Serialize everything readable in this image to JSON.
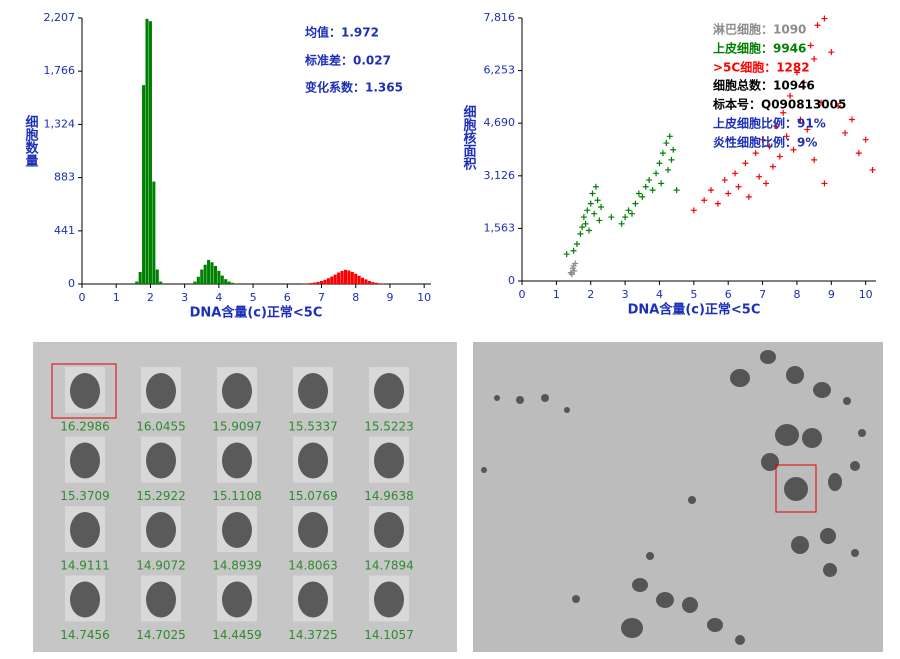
{
  "chart_data": [
    {
      "type": "bar",
      "ylabel": "细胞数量",
      "xlabel": "DNA含量(c)正常<5C",
      "annotations": [
        {
          "text": "均值：1.972",
          "color": "#1c2fb8"
        },
        {
          "text": "标准差：0.027",
          "color": "#1c2fb8"
        },
        {
          "text": "变化系数：1.365",
          "color": "#1c2fb8"
        }
      ],
      "series": [
        {
          "color": "#008000",
          "x": [
            1.6,
            1.7,
            1.8,
            1.9,
            2.0,
            2.1,
            2.2,
            2.3,
            3.3,
            3.4,
            3.5,
            3.6,
            3.7,
            3.8,
            3.9,
            4.0,
            4.1,
            4.2,
            4.3,
            4.4,
            4.5
          ],
          "values": [
            20,
            100,
            1650,
            2200,
            2180,
            850,
            120,
            20,
            20,
            60,
            120,
            160,
            200,
            180,
            150,
            110,
            70,
            40,
            20,
            10,
            5
          ]
        },
        {
          "color": "#ff0000",
          "x": [
            6.5,
            6.6,
            6.7,
            6.8,
            6.9,
            7.0,
            7.1,
            7.2,
            7.3,
            7.4,
            7.5,
            7.6,
            7.7,
            7.8,
            7.9,
            8.0,
            8.1,
            8.2,
            8.3,
            8.4,
            8.5,
            8.6,
            8.7,
            8.8
          ],
          "values": [
            3,
            5,
            8,
            12,
            18,
            25,
            35,
            48,
            62,
            78,
            95,
            108,
            118,
            112,
            100,
            85,
            68,
            52,
            38,
            26,
            16,
            10,
            6,
            3
          ]
        }
      ],
      "xlim": [
        0,
        10.2
      ],
      "xticks": [
        0,
        1,
        2,
        3,
        4,
        5,
        6,
        7,
        8,
        9,
        10
      ],
      "ylim": [
        0,
        2207
      ],
      "yticks": [
        0,
        441,
        883,
        {
          "value": 1324,
          "label": "1,324"
        },
        {
          "value": 1766,
          "label": "1,766"
        },
        {
          "value": 2207,
          "label": "2,207"
        }
      ]
    },
    {
      "type": "scatter",
      "ylabel": "细胞核面积",
      "xlabel": "DNA含量(c)正常<5C",
      "series": [
        {
          "name": "淋巴细胞：1090",
          "color": "#8c8c8c",
          "x": [
            1.42,
            1.48,
            1.52,
            1.55,
            1.5,
            1.45
          ],
          "values": [
            250,
            380,
            300,
            520,
            450,
            200
          ]
        },
        {
          "name": "上皮细胞：9946",
          "color": "#008000",
          "x": [
            1.5,
            1.6,
            1.7,
            1.75,
            1.8,
            1.85,
            1.9,
            1.95,
            2.0,
            2.05,
            2.1,
            2.15,
            2.2,
            2.25,
            2.3,
            2.9,
            3.0,
            3.1,
            3.2,
            3.3,
            3.4,
            3.5,
            3.6,
            3.7,
            3.8,
            3.9,
            4.0,
            4.05,
            4.1,
            4.2,
            4.25,
            4.3,
            4.35,
            4.4,
            4.5,
            2.6,
            1.3
          ],
          "values": [
            900,
            1100,
            1400,
            1600,
            1900,
            1700,
            2100,
            1500,
            2300,
            2600,
            2000,
            2800,
            2400,
            1800,
            2200,
            1700,
            1900,
            2100,
            2000,
            2300,
            2600,
            2500,
            2800,
            3000,
            2700,
            3200,
            3500,
            2900,
            3800,
            4100,
            3300,
            4300,
            3600,
            3900,
            2700,
            1900,
            800
          ]
        },
        {
          "name": ">5C细胞：1282",
          "color": "#ff0000",
          "x": [
            5.0,
            5.3,
            5.5,
            5.7,
            5.9,
            6.0,
            6.2,
            6.3,
            6.5,
            6.6,
            6.8,
            6.9,
            7.0,
            7.1,
            7.2,
            7.3,
            7.4,
            7.5,
            7.6,
            7.7,
            7.8,
            7.9,
            8.0,
            8.1,
            8.2,
            8.3,
            8.4,
            8.5,
            8.6,
            8.7,
            8.8,
            9.0,
            9.2,
            9.4,
            9.6,
            9.8,
            10.0,
            10.2,
            8.5,
            8.8
          ],
          "values": [
            2100,
            2400,
            2700,
            2300,
            3000,
            2600,
            3200,
            2800,
            3500,
            2500,
            3800,
            3100,
            4200,
            2900,
            4000,
            3400,
            4600,
            3700,
            5000,
            4300,
            5500,
            3900,
            6200,
            4800,
            5900,
            4500,
            7000,
            6600,
            7600,
            5300,
            7800,
            6800,
            5200,
            4400,
            4800,
            3800,
            4200,
            3300,
            3600,
            2900
          ]
        }
      ],
      "annotations": [
        {
          "text": "细胞总数：10946",
          "color": "#000000"
        },
        {
          "text": "标本号：Q090813005",
          "color": "#000000"
        },
        {
          "text": "上皮细胞比例：91%",
          "color": "#1c2fb8"
        },
        {
          "text": "炎性细胞比例：9%",
          "color": "#1c2fb8"
        }
      ],
      "xlim": [
        0,
        10.3
      ],
      "xticks": [
        0,
        1,
        2,
        3,
        4,
        5,
        6,
        7,
        8,
        9,
        10
      ],
      "ylim": [
        0,
        7816
      ],
      "yticks": [
        0,
        {
          "value": 1563,
          "label": "1,563"
        },
        {
          "value": 3126,
          "label": "3,126"
        },
        {
          "value": 4690,
          "label": "4,690"
        },
        {
          "value": 6253,
          "label": "6,253"
        },
        {
          "value": 7816,
          "label": "7,816"
        }
      ]
    }
  ],
  "gallery": {
    "labels": [
      16.2986,
      16.0455,
      15.9097,
      15.5337,
      15.5223,
      15.3709,
      15.2922,
      15.1108,
      15.0769,
      14.9638,
      14.9111,
      14.9072,
      14.8939,
      14.8063,
      14.7894,
      14.7456,
      14.7025,
      14.4459,
      14.3725,
      14.1057
    ]
  }
}
